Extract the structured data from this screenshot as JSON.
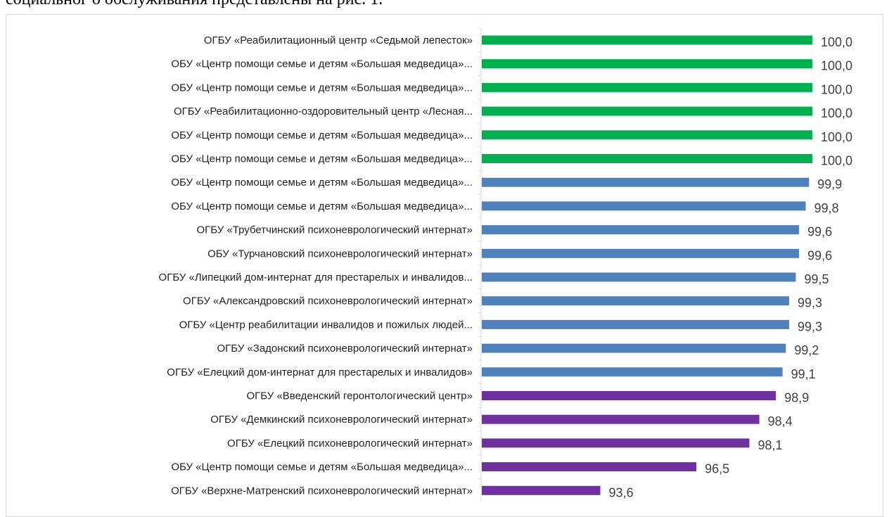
{
  "document": {
    "caption_fragment": "социальног о обслуживания представлены на рис. 1."
  },
  "colors": {
    "green": "#00b050",
    "blue": "#4f81bd",
    "purple": "#7030a0",
    "axis": "#d9d9d9",
    "label": "#1f1f1f",
    "value": "#404040"
  },
  "chart_data": {
    "type": "bar",
    "orientation": "horizontal",
    "title": "",
    "xlabel": "",
    "ylabel": "",
    "xlim": [
      90,
      100
    ],
    "grid": false,
    "legend": "none",
    "categories": [
      "ОГБУ «Реабилитационный центр «Седьмой лепесток»",
      "ОБУ «Центр помощи семье и детям «Большая медведица»...",
      "ОБУ «Центр помощи семье и детям «Большая медведица»...",
      "ОГБУ  «Реабилитационно-оздоровительный центр «Лесная...",
      "ОБУ «Центр помощи семье и детям «Большая медведица»...",
      "ОБУ «Центр помощи семье и детям «Большая медведица»...",
      "ОБУ «Центр помощи семье и детям «Большая медведица»...",
      "ОБУ «Центр помощи семье и детям «Большая медведица»...",
      "ОГБУ «Трубетчинский психоневрологический интернат»",
      "ОБУ «Турчановский психоневрологический интернат»",
      "ОГБУ «Липецкий дом-интернат для престарелых и инвалидов...",
      "ОГБУ «Александровский психоневрологический интернат»",
      "ОГБУ «Центр реабилитации инвалидов и пожилых людей...",
      "ОГБУ «Задонский психоневрологический интернат»",
      "ОГБУ «Елецкий дом-интернат для престарелых и инвалидов»",
      "ОГБУ «Введенский геронтологический центр»",
      "ОГБУ «Демкинский психоневрологический интернат»",
      "ОГБУ «Елецкий психоневрологический интернат»",
      "ОБУ «Центр помощи семье и детям «Большая медведица»...",
      "ОГБУ «Верхне-Матренский психоневрологический интернат»"
    ],
    "values": [
      100.0,
      100.0,
      100.0,
      100.0,
      100.0,
      100.0,
      99.9,
      99.8,
      99.6,
      99.6,
      99.5,
      99.3,
      99.3,
      99.2,
      99.1,
      98.9,
      98.4,
      98.1,
      96.5,
      93.6
    ],
    "value_labels": [
      "100,0",
      "100,0",
      "100,0",
      "100,0",
      "100,0",
      "100,0",
      "99,9",
      "99,8",
      "99,6",
      "99,6",
      "99,5",
      "99,3",
      "99,3",
      "99,2",
      "99,1",
      "98,9",
      "98,4",
      "98,1",
      "96,5",
      "93,6"
    ],
    "bar_colors": [
      "green",
      "green",
      "green",
      "green",
      "green",
      "green",
      "blue",
      "blue",
      "blue",
      "blue",
      "blue",
      "blue",
      "blue",
      "blue",
      "blue",
      "purple",
      "purple",
      "purple",
      "purple",
      "purple"
    ]
  }
}
